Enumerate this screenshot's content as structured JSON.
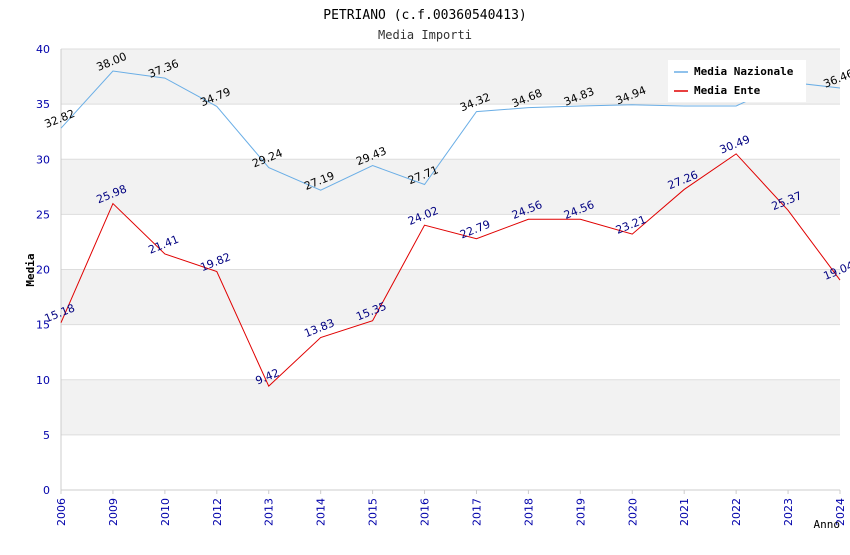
{
  "chart_data": {
    "type": "line",
    "title": "PETRIANO (c.f.00360540413)",
    "subtitle": "Media Importi",
    "xlabel": "Anno",
    "ylabel": "Media",
    "ylim": [
      0,
      40
    ],
    "yticks": [
      0,
      5,
      10,
      15,
      20,
      25,
      30,
      35,
      40
    ],
    "categories": [
      "2006",
      "2009",
      "2010",
      "2012",
      "2013",
      "2014",
      "2015",
      "2016",
      "2017",
      "2018",
      "2019",
      "2020",
      "2021",
      "2022",
      "2023",
      "2024"
    ],
    "series": [
      {
        "name": "Media Nazionale",
        "color": "#6aaee6",
        "label_color": "#000000",
        "values": [
          32.82,
          38.0,
          37.36,
          34.79,
          29.24,
          27.19,
          29.43,
          27.71,
          34.32,
          34.68,
          34.83,
          34.94,
          34.83,
          34.83,
          37.0,
          36.46
        ],
        "labels": [
          "32.82",
          "38.00",
          "37.36",
          "34.79",
          "29.24",
          "27.19",
          "29.43",
          "27.71",
          "34.32",
          "34.68",
          "34.83",
          "34.94",
          "",
          "",
          "",
          "36.46"
        ]
      },
      {
        "name": "Media Ente",
        "color": "#e00000",
        "label_color": "#000080",
        "values": [
          15.18,
          25.98,
          21.41,
          19.82,
          9.42,
          13.83,
          15.35,
          24.02,
          22.79,
          24.56,
          24.56,
          23.21,
          27.26,
          30.49,
          25.37,
          19.04
        ],
        "labels": [
          "15.18",
          "25.98",
          "21.41",
          "19.82",
          "9.42",
          "13.83",
          "15.35",
          "24.02",
          "22.79",
          "24.56",
          "24.56",
          "23.21",
          "27.26",
          "30.49",
          "25.37",
          "19.04"
        ]
      }
    ],
    "legend_position": "top-right",
    "grid": true
  },
  "colors": {
    "band": "#f2f2f2",
    "grid": "#dddddd",
    "axis_label": "#0000aa",
    "title": "#000000",
    "subtitle": "#333333"
  }
}
